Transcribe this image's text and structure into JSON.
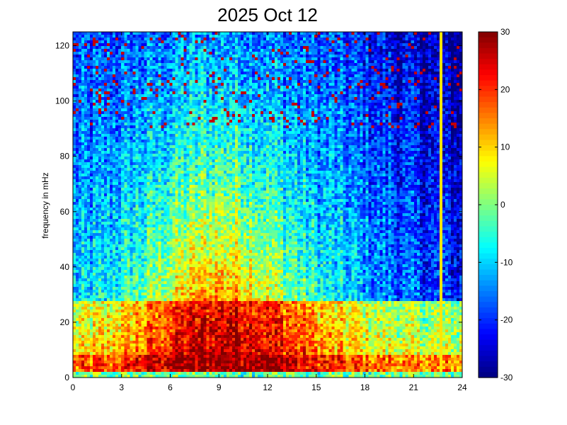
{
  "chart_data": {
    "type": "heatmap",
    "title": "2025 Oct 12",
    "xlabel": "",
    "ylabel": "frequency in mHz",
    "xlim": [
      0,
      24
    ],
    "ylim": [
      0,
      125
    ],
    "x_ticks": [
      "0",
      "3",
      "6",
      "9",
      "12",
      "15",
      "18",
      "21",
      "24"
    ],
    "y_ticks": [
      "0",
      "20",
      "40",
      "60",
      "80",
      "100",
      "120"
    ],
    "colorbar": {
      "clim": [
        -30,
        30
      ],
      "ticks": [
        "30",
        "20",
        "10",
        "0",
        "-10",
        "-20",
        "-30"
      ],
      "colormap": "jet"
    },
    "grid": false,
    "description_of_values": "Power level in dB (color), high (red, ~25-30) below 25 mHz between hours 2-17, yellow/orange mid frequencies 40-90 mHz between hours 4-14, blue (~-20) at high frequencies and after hour 17; a bright vertical line near hour 22.7; a cyan band near 2 mHz across all hours"
  }
}
